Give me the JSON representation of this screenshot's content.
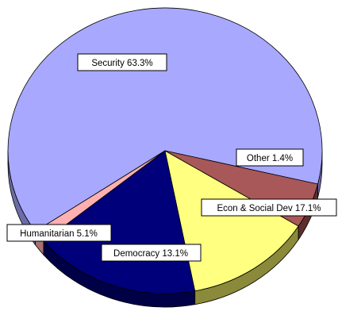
{
  "chart_data": {
    "type": "pie",
    "style": "3d",
    "title": "",
    "slices": [
      {
        "label": "Security",
        "value": 63.3,
        "text": "Security 63.3%",
        "color": "#a8a8ff",
        "side_color": "#6c6ca6"
      },
      {
        "label": "Other",
        "value": 1.4,
        "text": "Other 1.4%",
        "color": "#ffb0b0",
        "side_color": "#a87070"
      },
      {
        "label": "Econ & Social Dev",
        "value": 17.1,
        "text": "Econ & Social Dev 17.1%",
        "color": "#00007a",
        "side_color": "#000046"
      },
      {
        "label": "Democracy",
        "value": 13.1,
        "text": "Democracy 13.1%",
        "color": "#ffff80",
        "side_color": "#8a8a3a"
      },
      {
        "label": "Humanitarian",
        "value": 5.1,
        "text": "Humanitarian 5.1%",
        "color": "#a85858",
        "side_color": "#5e2e2e"
      }
    ]
  }
}
